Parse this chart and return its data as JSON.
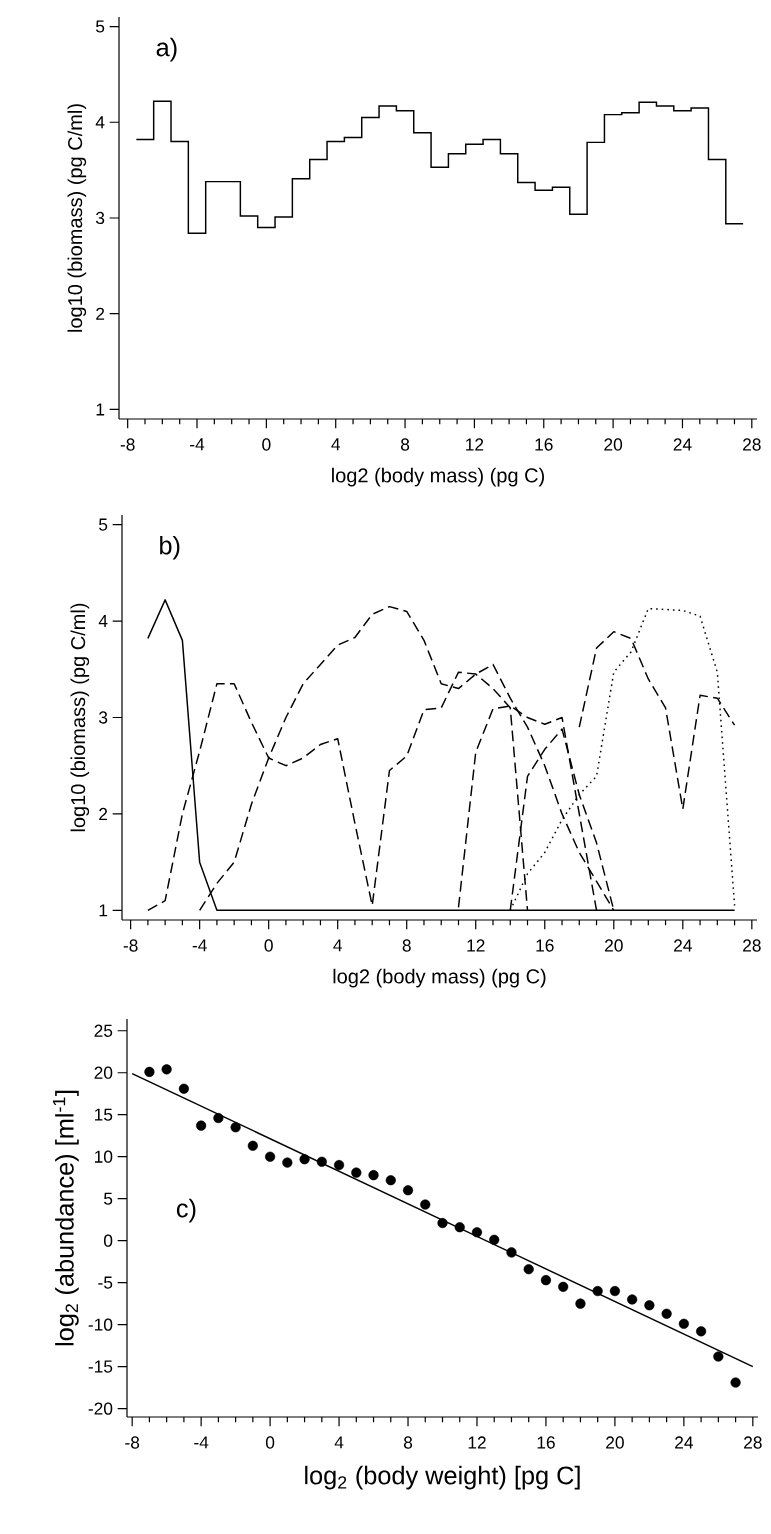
{
  "chart_data": [
    {
      "type": "histogram",
      "xlabel": "log2 (body mass) (pg C)",
      "ylabel": "log10 (biomass) (pg C/ml)",
      "annotations": [
        "a)"
      ],
      "color": "#000000",
      "bins": [
        -7.5,
        -6.5,
        -5.5,
        -4.5,
        -3.5,
        -2.5,
        -1.5,
        -0.5,
        0.5,
        1.5,
        2.5,
        3.5,
        4.5,
        5.5,
        6.5,
        7.5,
        8.5,
        9.5,
        10.5,
        11.5,
        12.5,
        13.5,
        14.5,
        15.5,
        16.5,
        17.5,
        18.5,
        19.5,
        20.5,
        21.5,
        22.5,
        23.5,
        24.5,
        25.5,
        26.5,
        27.5
      ],
      "values": [
        3.82,
        4.22,
        3.8,
        2.84,
        3.38,
        3.38,
        3.02,
        2.9,
        3.01,
        3.41,
        3.61,
        3.8,
        3.84,
        4.05,
        4.17,
        4.12,
        3.89,
        3.53,
        3.67,
        3.77,
        3.82,
        3.67,
        3.37,
        3.29,
        3.32,
        3.04,
        3.79,
        4.08,
        4.1,
        4.21,
        4.17,
        4.12,
        4.15,
        3.61,
        2.94
      ],
      "xlim": [
        -8.5,
        28.3
      ],
      "ylim": [
        0.9,
        5.1
      ],
      "xticks": [
        -8,
        -4,
        0,
        4,
        8,
        12,
        16,
        20,
        24,
        28
      ],
      "yticks": [
        1,
        2,
        3,
        4,
        5
      ]
    },
    {
      "type": "line",
      "xlabel": "log2 (body mass) (pg C)",
      "ylabel": "log10 (biomass) (pg C/ml)",
      "annotations": [
        "b)"
      ],
      "series": [
        {
          "color": "#000000",
          "line_style": "solid",
          "x": [
            -7,
            -6,
            -5,
            -4,
            -3,
            -2,
            -1,
            0,
            1,
            2,
            3,
            4,
            5,
            6,
            7,
            8,
            9,
            10,
            11,
            12,
            13,
            14,
            15,
            16,
            17,
            18,
            19,
            20,
            21,
            22,
            23,
            24,
            25,
            26,
            27
          ],
          "values": [
            3.82,
            4.22,
            3.8,
            1.5,
            1.0,
            1.0,
            1.0,
            1.0,
            1.0,
            1.0,
            1.0,
            1.0,
            1.0,
            1.0,
            1.0,
            1.0,
            1.0,
            1.0,
            1.0,
            1.0,
            1.0,
            1.0,
            1.0,
            1.0,
            1.0,
            1.0,
            1.0,
            1.0,
            1.0,
            1.0,
            1.0,
            1.0,
            1.0,
            1.0,
            1.0
          ]
        },
        {
          "color": "#000000",
          "line_style": "dashed",
          "x": [
            -7,
            -6,
            -5,
            -4,
            -3,
            -2,
            -1,
            0,
            1,
            2,
            3,
            4,
            5,
            6,
            7,
            8,
            9,
            10,
            11,
            12,
            13,
            14,
            15
          ],
          "values": [
            1.0,
            1.1,
            2.0,
            2.65,
            3.35,
            3.35,
            2.95,
            2.58,
            2.5,
            2.58,
            2.72,
            2.78,
            1.9,
            1.05,
            2.45,
            2.6,
            3.08,
            3.1,
            3.47,
            3.45,
            3.3,
            3.1,
            1.0
          ]
        },
        {
          "color": "#000000",
          "line_style": "dashed",
          "x": [
            -4,
            -3,
            -2,
            -1,
            0,
            1,
            2,
            3,
            4,
            5,
            6,
            7,
            8,
            9,
            10,
            11,
            12,
            13,
            14,
            15,
            16,
            17,
            18,
            19,
            20
          ],
          "values": [
            1.0,
            1.28,
            1.5,
            2.1,
            2.58,
            3.0,
            3.35,
            3.55,
            3.75,
            3.83,
            4.07,
            4.15,
            4.1,
            3.8,
            3.35,
            3.3,
            3.45,
            3.55,
            3.2,
            2.9,
            2.5,
            2.0,
            1.6,
            1.3,
            1.0
          ]
        },
        {
          "color": "#000000",
          "line_style": "dashed",
          "x": [
            11,
            12,
            13,
            14,
            15,
            16,
            17,
            18,
            19
          ],
          "values": [
            1.03,
            2.64,
            3.09,
            3.12,
            3.0,
            2.93,
            3.0,
            2.0,
            1.0
          ]
        },
        {
          "color": "#000000",
          "line_style": "dashed",
          "x": [
            14,
            15,
            16,
            17,
            18,
            19,
            20
          ],
          "values": [
            1.0,
            2.39,
            2.67,
            2.88,
            2.2,
            1.7,
            1.0
          ]
        },
        {
          "color": "#000000",
          "line_style": "dotted",
          "x": [
            14,
            15,
            16,
            17,
            18,
            19,
            20,
            21,
            22,
            23,
            24,
            25,
            26,
            27
          ],
          "values": [
            1.0,
            1.38,
            1.6,
            1.94,
            2.2,
            2.39,
            3.47,
            3.68,
            4.13,
            4.12,
            4.11,
            4.05,
            3.47,
            1.05
          ]
        },
        {
          "color": "#000000",
          "line_style": "dashed",
          "x": [
            18,
            19,
            20,
            21,
            22,
            23,
            24,
            25,
            26,
            27
          ],
          "values": [
            2.9,
            3.72,
            3.89,
            3.82,
            3.4,
            3.1,
            2.05,
            3.23,
            3.2,
            2.92
          ]
        }
      ],
      "xlim": [
        -8.5,
        28.3
      ],
      "ylim": [
        0.9,
        5.1
      ],
      "xticks": [
        -8,
        -4,
        0,
        4,
        8,
        12,
        16,
        20,
        24,
        28
      ],
      "yticks": [
        1,
        2,
        3,
        4,
        5
      ]
    },
    {
      "type": "scatter",
      "xlabel": "log$_{2}$ (body weight) [pg C]",
      "ylabel": "log$_{2}$ (abundance) [ml$^{-1}$]",
      "annotations": [
        "c)"
      ],
      "series": [
        {
          "type": "scatter",
          "marker": "circle",
          "color": "#000000",
          "x": [
            -7,
            -6,
            -5,
            -4,
            -3,
            -2,
            -1,
            0,
            1,
            2,
            3,
            4,
            5,
            6,
            7,
            8,
            9,
            10,
            11,
            12,
            13,
            14,
            15,
            16,
            17,
            18,
            19,
            20,
            21,
            22,
            23,
            24,
            25,
            26,
            27
          ],
          "values": [
            20.1,
            20.4,
            18.1,
            13.7,
            14.6,
            13.5,
            11.3,
            10.0,
            9.3,
            9.7,
            9.4,
            9.0,
            8.1,
            7.8,
            7.2,
            6.0,
            4.3,
            2.1,
            1.6,
            1.0,
            0.1,
            -1.4,
            -3.4,
            -4.7,
            -5.5,
            -7.5,
            -6.0,
            -6.0,
            -7.0,
            -7.7,
            -8.7,
            -9.9,
            -10.8,
            -13.8,
            -16.9
          ]
        },
        {
          "type": "line",
          "color": "#000000",
          "x": [
            -8,
            28
          ],
          "values": [
            19.9,
            -15.0
          ]
        }
      ],
      "xlim": [
        -8.3,
        28.3
      ],
      "ylim": [
        -21,
        26.4
      ],
      "xticks": [
        -8,
        -4,
        0,
        4,
        8,
        12,
        16,
        20,
        24,
        28
      ],
      "yticks": [
        -20,
        -15,
        -10,
        -5,
        0,
        5,
        10,
        15,
        20,
        25
      ]
    }
  ]
}
